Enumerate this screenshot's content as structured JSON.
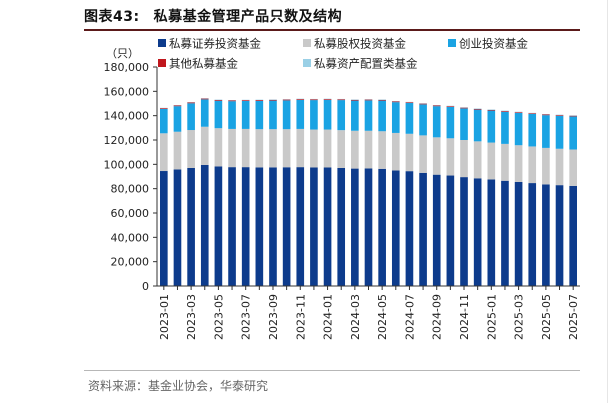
{
  "figure": {
    "label": "图表43:",
    "title": "私募基金管理产品只数及结构",
    "source": "资料来源：基金业协会，华泰研究"
  },
  "chart_data": {
    "type": "bar",
    "stacked": true,
    "ylabel": "（只）",
    "ylim": [
      0,
      180000
    ],
    "yticks": [
      0,
      20000,
      40000,
      60000,
      80000,
      100000,
      120000,
      140000,
      160000,
      180000
    ],
    "ytick_labels": [
      "0",
      "20,000",
      "40,000",
      "60,000",
      "80,000",
      "100,000",
      "120,000",
      "140,000",
      "160,000",
      "180,000"
    ],
    "grid": false,
    "legend_position": "top-left",
    "categories": [
      "2023-01",
      "2023-02",
      "2023-03",
      "2023-04",
      "2023-05",
      "2023-06",
      "2023-07",
      "2023-08",
      "2023-09",
      "2023-10",
      "2023-11",
      "2023-12",
      "2024-01",
      "2024-02",
      "2024-03",
      "2024-04",
      "2024-05",
      "2024-06",
      "2024-07",
      "2024-08",
      "2024-09",
      "2024-10",
      "2024-11",
      "2024-12",
      "2025-01",
      "2025-02",
      "2025-03",
      "2025-04",
      "2025-05",
      "2025-06",
      "2025-07"
    ],
    "xtick_labels": [
      "2023-01",
      "2023-03",
      "2023-05",
      "2023-07",
      "2023-09",
      "2023-11",
      "2024-01",
      "2024-03",
      "2024-05",
      "2024-07",
      "2024-09",
      "2024-11",
      "2025-01",
      "2025-03",
      "2025-05",
      "2025-07"
    ],
    "series": [
      {
        "name": "私募证券投资基金",
        "color": "#0d3b8c",
        "values": [
          94500,
          95800,
          97000,
          99500,
          98300,
          97700,
          97700,
          97500,
          97500,
          97600,
          97700,
          97400,
          97400,
          97000,
          96500,
          96600,
          96300,
          95000,
          94400,
          93000,
          91500,
          90800,
          89500,
          88500,
          87600,
          86500,
          85500,
          84600,
          83500,
          82900,
          82300
        ]
      },
      {
        "name": "私募股权投资基金",
        "color": "#c9c9c9",
        "values": [
          31000,
          31000,
          31200,
          31400,
          31400,
          31400,
          31400,
          31400,
          31400,
          31300,
          31400,
          31200,
          31200,
          31100,
          31100,
          31000,
          30900,
          30800,
          30700,
          30800,
          30700,
          30600,
          30500,
          30400,
          30300,
          30300,
          30200,
          30100,
          30000,
          29900,
          29900
        ]
      },
      {
        "name": "创业投资基金",
        "color": "#1aa3e3",
        "values": [
          20000,
          21000,
          22000,
          22500,
          22600,
          22800,
          23000,
          23300,
          23500,
          23700,
          23900,
          24200,
          24400,
          24700,
          24800,
          25000,
          25200,
          25300,
          25300,
          25500,
          25600,
          25800,
          26000,
          26100,
          26300,
          26400,
          26600,
          26700,
          26900,
          27100,
          27200
        ]
      },
      {
        "name": "其他私募基金",
        "color": "#c0171d",
        "values": [
          650,
          650,
          650,
          650,
          640,
          640,
          640,
          640,
          630,
          630,
          630,
          630,
          620,
          620,
          620,
          610,
          610,
          610,
          600,
          600,
          600,
          590,
          590,
          590,
          580,
          580,
          580,
          570,
          570,
          570,
          560
        ]
      },
      {
        "name": "私募资产配置类基金",
        "color": "#9ad0e6",
        "values": [
          300,
          300,
          310,
          310,
          310,
          310,
          320,
          320,
          320,
          320,
          330,
          330,
          330,
          330,
          340,
          340,
          340,
          340,
          340,
          350,
          350,
          350,
          350,
          350,
          350,
          350,
          360,
          360,
          360,
          360,
          360
        ]
      }
    ]
  }
}
